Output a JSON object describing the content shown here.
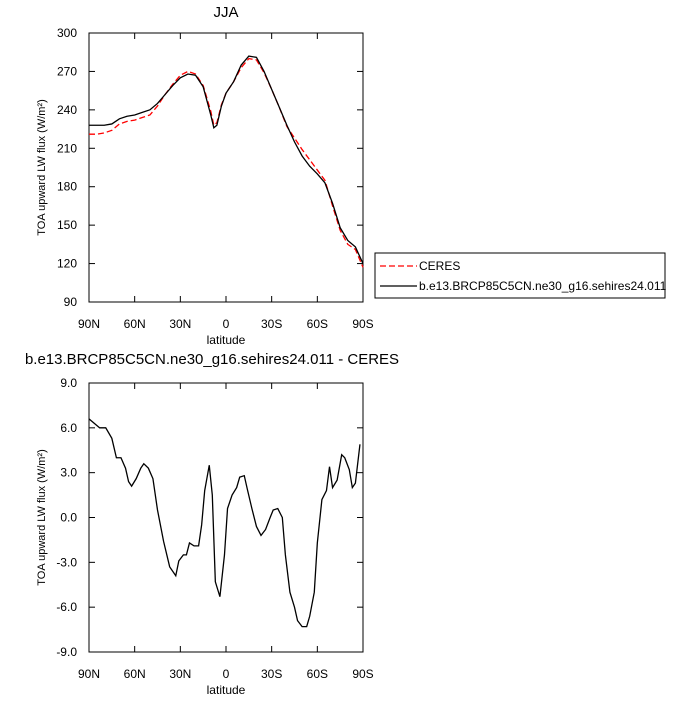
{
  "chart_data": [
    {
      "type": "line",
      "title": "JJA",
      "xlabel": "latitude",
      "ylabel": "TOA upward LW flux (W/m²)",
      "x": [
        90,
        85,
        80,
        75,
        70,
        65,
        60,
        55,
        50,
        45,
        40,
        35,
        30,
        25,
        20,
        15,
        10,
        8,
        6,
        3,
        0,
        -5,
        -10,
        -15,
        -20,
        -25,
        -30,
        -35,
        -40,
        -45,
        -50,
        -55,
        -60,
        -65,
        -70,
        -75,
        -80,
        -85,
        -90
      ],
      "series": [
        {
          "name": "CERES",
          "color": "#ff0000",
          "dash": true,
          "values": [
            221,
            221,
            222,
            224,
            229,
            231,
            232,
            234,
            236,
            243,
            252,
            260,
            267,
            270,
            268,
            259,
            239,
            228,
            230,
            244,
            253,
            262,
            273,
            280,
            279,
            269,
            256,
            242,
            227,
            218,
            209,
            201,
            193,
            185,
            165,
            146,
            135,
            131,
            117
          ]
        },
        {
          "name": "b.e13.BRCP85C5CN.ne30_g16.sehires24.011",
          "color": "#000000",
          "dash": false,
          "values": [
            228,
            228,
            228,
            229,
            233,
            235,
            236,
            238,
            240,
            245,
            252,
            259,
            265,
            268,
            267,
            258,
            236,
            226,
            228,
            243,
            253,
            262,
            275,
            282,
            281,
            270,
            256,
            242,
            228,
            215,
            204,
            196,
            190,
            183,
            167,
            148,
            138,
            133,
            120
          ]
        }
      ],
      "xlim": [
        90,
        -90
      ],
      "xticks": [
        {
          "value": 90,
          "label": "90N"
        },
        {
          "value": 60,
          "label": "60N"
        },
        {
          "value": 30,
          "label": "30N"
        },
        0,
        {
          "value": -30,
          "label": "30S"
        },
        {
          "value": -60,
          "label": "60S"
        },
        {
          "value": -90,
          "label": "90S"
        }
      ],
      "ylim": [
        90,
        300
      ],
      "yticks": [
        90,
        120,
        150,
        180,
        210,
        240,
        270,
        300
      ],
      "legend": "outside-right"
    },
    {
      "type": "line",
      "title": "b.e13.BRCP85C5CN.ne30_g16.sehires24.011 - CERES",
      "xlabel": "latitude",
      "ylabel": "TOA upward LW flux (W/m²)",
      "x": [
        90,
        83,
        79,
        75,
        72,
        69,
        66,
        64,
        62,
        59,
        56,
        54,
        51,
        48,
        45,
        41,
        37,
        33,
        31,
        28,
        26,
        24,
        21,
        18,
        16,
        14,
        11,
        9,
        7,
        4,
        1,
        -1,
        -4,
        -7,
        -9,
        -12,
        -14,
        -17,
        -20,
        -23,
        -26,
        -29,
        -31,
        -34,
        -37,
        -39,
        -42,
        -45,
        -47,
        -50,
        -53,
        -55,
        -58,
        -60,
        -63,
        -66,
        -68,
        -70,
        -73,
        -76,
        -78,
        -81,
        -83,
        -85,
        -88
      ],
      "series": [
        {
          "name": "b.e13.BRCP85C5CN.ne30_g16.sehires24.011 - CERES",
          "color": "#000000",
          "dash": false,
          "values": [
            6.6,
            6.0,
            6.0,
            5.3,
            4.0,
            4.0,
            3.3,
            2.4,
            2.1,
            2.6,
            3.3,
            3.6,
            3.3,
            2.6,
            0.5,
            -1.6,
            -3.3,
            -3.9,
            -2.9,
            -2.5,
            -2.5,
            -1.7,
            -1.9,
            -1.9,
            -0.5,
            1.8,
            3.5,
            1.5,
            -4.3,
            -5.3,
            -2.5,
            0.6,
            1.5,
            2.0,
            2.7,
            2.8,
            1.9,
            0.6,
            -0.6,
            -1.2,
            -0.8,
            0,
            0.5,
            0.6,
            0.0,
            -2.5,
            -5.0,
            -6.0,
            -6.9,
            -7.3,
            -7.3,
            -6.6,
            -5.0,
            -1.7,
            1.2,
            1.8,
            3.4,
            2.0,
            2.5,
            4.2,
            4.0,
            3.2,
            2.0,
            2.3,
            4.9
          ]
        }
      ],
      "xlim": [
        90,
        -90
      ],
      "xticks": [
        {
          "value": 90,
          "label": "90N"
        },
        {
          "value": 60,
          "label": "60N"
        },
        {
          "value": 30,
          "label": "30N"
        },
        0,
        {
          "value": -30,
          "label": "30S"
        },
        {
          "value": -60,
          "label": "60S"
        },
        {
          "value": -90,
          "label": "90S"
        }
      ],
      "ylim": [
        -9,
        9
      ],
      "yticks": [
        {
          "value": -9,
          "label": "-9.0"
        },
        {
          "value": -6,
          "label": "-6.0"
        },
        {
          "value": -3,
          "label": "-3.0"
        },
        {
          "value": 0,
          "label": "0.0"
        },
        {
          "value": 3,
          "label": "3.0"
        },
        {
          "value": 6,
          "label": "6.0"
        },
        {
          "value": 9,
          "label": "9.0"
        }
      ]
    }
  ]
}
